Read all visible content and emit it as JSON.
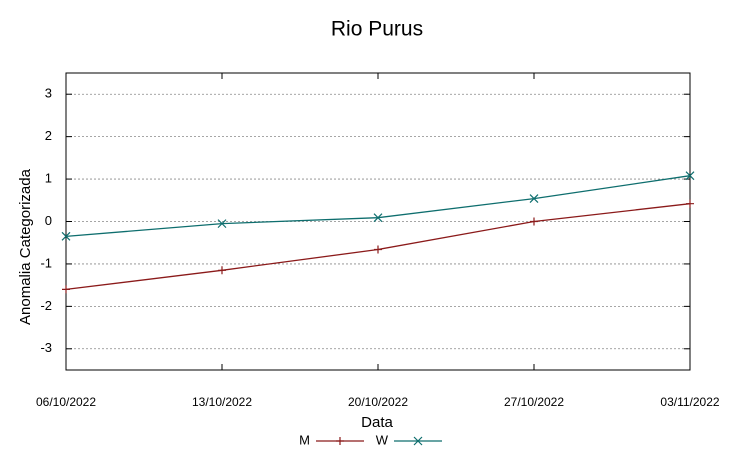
{
  "chart_data": {
    "type": "line",
    "title": "Rio Purus",
    "x_label": "Data",
    "y_label": "Anomalia Categorizada",
    "categories": [
      "06/10/2022",
      "13/10/2022",
      "20/10/2022",
      "27/10/2022",
      "03/11/2022"
    ],
    "series": [
      {
        "name": "M",
        "color": "#8b1a1a",
        "marker": "plus",
        "values": [
          -1.6,
          -1.15,
          -0.66,
          0,
          0.42
        ]
      },
      {
        "name": "W",
        "color": "#0e6e6e",
        "marker": "cross",
        "values": [
          -0.35,
          -0.05,
          0.09,
          0.54,
          1.08
        ]
      }
    ],
    "ylim": [
      -3.5,
      3.5
    ],
    "yticks": [
      -3,
      -2,
      -1,
      0,
      1,
      2,
      3
    ],
    "grid": true,
    "legend": "bottom"
  }
}
